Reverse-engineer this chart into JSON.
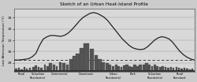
{
  "title": "Sketch of an Urban Heat-Island Profile",
  "ylabel": "Late Afternoon Temperature (°C)",
  "yticks": [
    29,
    30,
    31,
    32,
    33
  ],
  "ylim": [
    28.2,
    33.8
  ],
  "xlim": [
    0,
    100
  ],
  "background_color": "#cccccc",
  "plot_bg": "#d8d8d8",
  "categories": [
    "Rural",
    "Suburban\nResidential",
    "Commercial",
    "Downtown",
    "Urban\nResidential",
    "Park",
    "Suburban\nResidential",
    "Rural\nFarmland"
  ],
  "cat_positions": [
    4,
    13,
    25,
    40,
    55,
    66,
    78,
    92
  ],
  "dashed_level": 29.25,
  "curve_x": [
    0,
    2,
    4,
    6,
    8,
    10,
    12,
    14,
    16,
    18,
    20,
    22,
    24,
    26,
    28,
    30,
    32,
    34,
    36,
    38,
    40,
    42,
    44,
    46,
    48,
    50,
    52,
    54,
    56,
    58,
    60,
    62,
    64,
    66,
    68,
    70,
    72,
    74,
    76,
    78,
    80,
    82,
    84,
    86,
    88,
    90,
    92,
    94,
    96,
    98,
    100
  ],
  "curve_y": [
    29.25,
    29.25,
    29.28,
    29.32,
    29.38,
    29.55,
    29.85,
    30.55,
    31.1,
    31.3,
    31.42,
    31.42,
    31.38,
    31.35,
    31.45,
    31.65,
    31.95,
    32.3,
    32.68,
    33.0,
    33.2,
    33.38,
    33.45,
    33.38,
    33.22,
    33.02,
    32.72,
    32.32,
    31.92,
    31.52,
    31.12,
    30.82,
    30.52,
    30.32,
    30.22,
    30.18,
    30.22,
    30.42,
    30.72,
    31.02,
    31.22,
    31.32,
    31.25,
    31.12,
    30.82,
    30.42,
    30.02,
    29.72,
    29.5,
    29.35,
    29.25
  ],
  "line_color": "#222222",
  "line_width": 0.9,
  "building_color": "#555555",
  "tree_color": "#444444",
  "building_data": [
    [
      1.0,
      1.2,
      1.0
    ],
    [
      2.5,
      1.5,
      1.0
    ],
    [
      4.0,
      1.0,
      1.0
    ],
    [
      5.5,
      1.8,
      1.0
    ],
    [
      7.0,
      1.2,
      1.0
    ],
    [
      8.5,
      1.5,
      1.0
    ],
    [
      10.5,
      1.8,
      1.2
    ],
    [
      12.0,
      2.2,
      1.2
    ],
    [
      13.5,
      1.8,
      1.2
    ],
    [
      15.0,
      1.5,
      1.0
    ],
    [
      17.0,
      2.5,
      1.2
    ],
    [
      18.5,
      2.0,
      1.2
    ],
    [
      20.0,
      3.0,
      1.5
    ],
    [
      22.0,
      2.5,
      1.5
    ],
    [
      23.5,
      2.0,
      1.2
    ],
    [
      25.5,
      3.5,
      1.5
    ],
    [
      27.5,
      3.0,
      1.5
    ],
    [
      29.5,
      2.5,
      1.5
    ],
    [
      31.5,
      4.5,
      2.0
    ],
    [
      33.5,
      5.5,
      2.0
    ],
    [
      35.5,
      6.5,
      2.5
    ],
    [
      37.5,
      8.5,
      2.5
    ],
    [
      40.0,
      10.0,
      3.0
    ],
    [
      43.0,
      8.0,
      2.5
    ],
    [
      45.5,
      6.0,
      2.0
    ],
    [
      47.5,
      4.5,
      2.0
    ],
    [
      49.5,
      3.5,
      1.8
    ],
    [
      51.5,
      3.0,
      1.5
    ],
    [
      53.0,
      2.5,
      1.5
    ],
    [
      55.0,
      2.0,
      1.2
    ],
    [
      56.5,
      2.5,
      1.5
    ],
    [
      58.0,
      2.0,
      1.2
    ],
    [
      59.5,
      1.8,
      1.2
    ],
    [
      61.0,
      2.2,
      1.5
    ],
    [
      62.5,
      2.5,
      1.5
    ],
    [
      64.0,
      2.0,
      1.2
    ],
    [
      65.5,
      1.8,
      1.2
    ],
    [
      67.0,
      2.5,
      1.5
    ],
    [
      68.5,
      2.0,
      1.2
    ],
    [
      70.0,
      2.5,
      1.5
    ],
    [
      72.0,
      2.5,
      1.5
    ],
    [
      73.5,
      3.0,
      1.5
    ],
    [
      75.0,
      2.5,
      1.5
    ],
    [
      76.5,
      2.0,
      1.2
    ],
    [
      78.0,
      2.5,
      1.5
    ],
    [
      79.5,
      2.0,
      1.2
    ],
    [
      81.0,
      1.8,
      1.2
    ],
    [
      82.5,
      2.0,
      1.2
    ],
    [
      84.0,
      1.8,
      1.0
    ],
    [
      85.5,
      1.5,
      1.0
    ],
    [
      87.0,
      1.8,
      1.0
    ],
    [
      88.5,
      1.5,
      1.0
    ],
    [
      90.0,
      1.8,
      1.0
    ],
    [
      91.5,
      1.5,
      1.0
    ],
    [
      93.0,
      1.2,
      1.0
    ],
    [
      94.5,
      1.5,
      1.0
    ],
    [
      96.0,
      1.2,
      1.0
    ],
    [
      97.5,
      1.0,
      1.0
    ],
    [
      99.0,
      1.2,
      1.0
    ]
  ]
}
